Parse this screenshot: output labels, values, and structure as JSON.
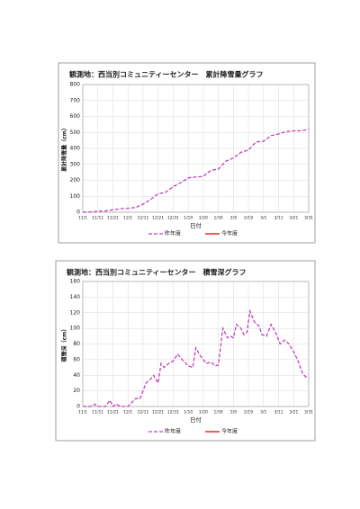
{
  "chart_data": [
    {
      "type": "line",
      "title": "観測地：西当別コミュニティーセンター　累計降雪量グラフ",
      "y_label": "累計降雪量（cm）",
      "x_label": "日付",
      "x": [
        0,
        5,
        10,
        15,
        20,
        25,
        30,
        35,
        40,
        45,
        50,
        55,
        60,
        65,
        70,
        75,
        80,
        85,
        90,
        95,
        100,
        105,
        110,
        115,
        120,
        125,
        130,
        135,
        140,
        145,
        150
      ],
      "series": [
        {
          "name": "昨年度",
          "color": "#c040c0",
          "dashed": true,
          "values": [
            0,
            2,
            5,
            8,
            15,
            22,
            25,
            30,
            50,
            80,
            115,
            125,
            160,
            185,
            215,
            220,
            225,
            262,
            270,
            320,
            340,
            375,
            390,
            440,
            445,
            480,
            490,
            505,
            510,
            510,
            520
          ]
        },
        {
          "name": "今年度",
          "color": "#ff0000",
          "dashed": false
        }
      ],
      "xlim": [
        0,
        150
      ],
      "xticks": [
        {
          "value": 0,
          "label": "11/1"
        },
        {
          "value": 10,
          "label": "11/11"
        },
        {
          "value": 20,
          "label": "11/21"
        },
        {
          "value": 30,
          "label": "12/1"
        },
        {
          "value": 40,
          "label": "12/11"
        },
        {
          "value": 50,
          "label": "12/21"
        },
        {
          "value": 60,
          "label": "12/31"
        },
        {
          "value": 70,
          "label": "1/10"
        },
        {
          "value": 80,
          "label": "1/20"
        },
        {
          "value": 90,
          "label": "1/30"
        },
        {
          "value": 100,
          "label": "2/9"
        },
        {
          "value": 110,
          "label": "2/19"
        },
        {
          "value": 120,
          "label": "3/1"
        },
        {
          "value": 130,
          "label": "3/11"
        },
        {
          "value": 140,
          "label": "3/21"
        },
        {
          "value": 150,
          "label": "3/31"
        }
      ],
      "ylim": [
        0,
        800
      ],
      "yticks": [
        0,
        100,
        200,
        300,
        400,
        500,
        600,
        700,
        800
      ],
      "grid": true
    },
    {
      "type": "line",
      "title": "観測地：西当別コミュニティーセンター　積雪深グラフ",
      "y_label": "積雪深（cm）",
      "x_label": "日付",
      "x": [
        0,
        5,
        8,
        10,
        15,
        18,
        20,
        22,
        25,
        30,
        35,
        38,
        42,
        45,
        47,
        50,
        52,
        54,
        57,
        60,
        63,
        66,
        70,
        73,
        75,
        78,
        82,
        85,
        88,
        90,
        93,
        96,
        98,
        100,
        102,
        105,
        107,
        109,
        111,
        114,
        117,
        119,
        122,
        125,
        128,
        131,
        134,
        137,
        140,
        143,
        146,
        148,
        150
      ],
      "series": [
        {
          "name": "昨年度",
          "color": "#c040c0",
          "dashed": true,
          "values": [
            0,
            0,
            3,
            0,
            0,
            8,
            0,
            3,
            0,
            0,
            10,
            10,
            30,
            35,
            40,
            30,
            55,
            50,
            55,
            58,
            67,
            60,
            52,
            50,
            75,
            65,
            55,
            57,
            52,
            53,
            100,
            88,
            90,
            88,
            105,
            100,
            92,
            95,
            122,
            108,
            103,
            92,
            90,
            105,
            95,
            80,
            85,
            80,
            70,
            58,
            42,
            38,
            37
          ]
        },
        {
          "name": "今年度",
          "color": "#ff0000",
          "dashed": false
        }
      ],
      "xlim": [
        0,
        150
      ],
      "xticks": [
        {
          "value": 0,
          "label": "11/1"
        },
        {
          "value": 10,
          "label": "11/11"
        },
        {
          "value": 20,
          "label": "11/21"
        },
        {
          "value": 30,
          "label": "12/1"
        },
        {
          "value": 40,
          "label": "12/11"
        },
        {
          "value": 50,
          "label": "12/21"
        },
        {
          "value": 60,
          "label": "12/31"
        },
        {
          "value": 70,
          "label": "1/10"
        },
        {
          "value": 80,
          "label": "1/20"
        },
        {
          "value": 90,
          "label": "1/30"
        },
        {
          "value": 100,
          "label": "2/9"
        },
        {
          "value": 110,
          "label": "2/19"
        },
        {
          "value": 120,
          "label": "3/1"
        },
        {
          "value": 130,
          "label": "3/11"
        },
        {
          "value": 140,
          "label": "3/21"
        },
        {
          "value": 150,
          "label": "3/31"
        }
      ],
      "ylim": [
        0,
        160
      ],
      "yticks": [
        0,
        20,
        40,
        60,
        80,
        100,
        120,
        140,
        160
      ],
      "grid": true
    }
  ]
}
